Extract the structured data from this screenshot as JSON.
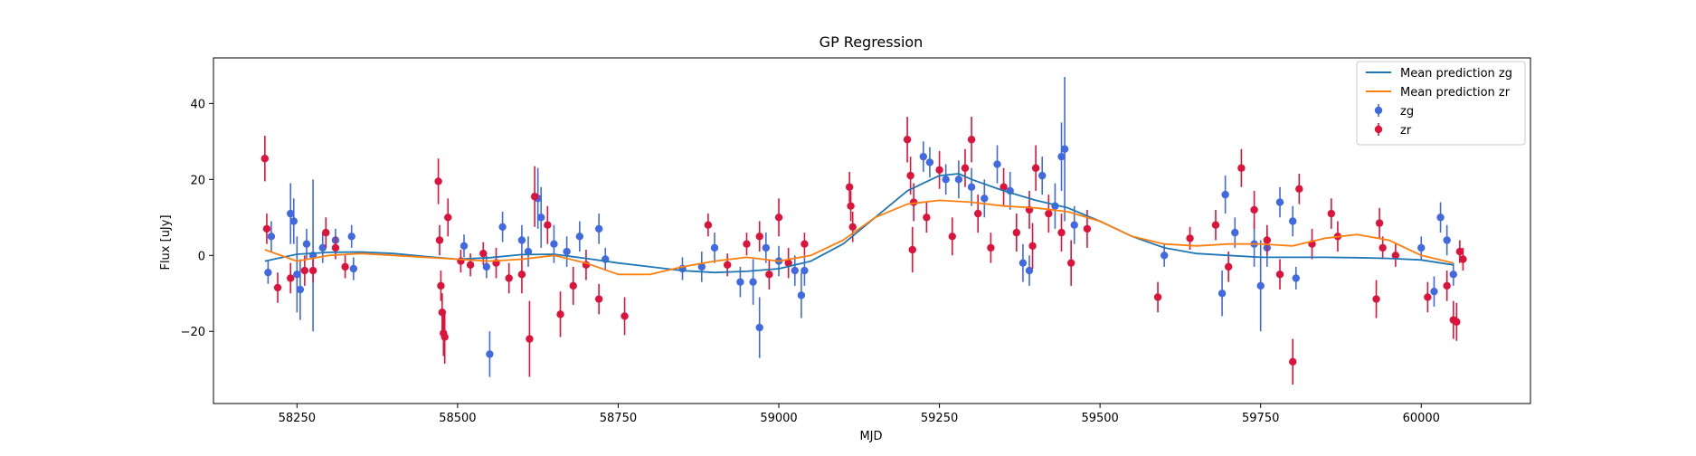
{
  "chart_data": {
    "type": "scatter",
    "title": "GP Regression",
    "xlabel": "MJD",
    "ylabel": "Flux [uJy]",
    "xlim": [
      58120,
      60170
    ],
    "ylim": [
      -39,
      52
    ],
    "xticks": [
      58250,
      58500,
      58750,
      59000,
      59250,
      59500,
      59750,
      60000
    ],
    "yticks": [
      -20,
      0,
      20,
      40
    ],
    "grid": false,
    "legend_position": "top-right",
    "legend": [
      {
        "label": "Mean prediction zg",
        "kind": "line",
        "color": "#1f77b4"
      },
      {
        "label": "Mean prediction zr",
        "kind": "line",
        "color": "#ff7f0e"
      },
      {
        "label": "zg",
        "kind": "errorbar",
        "color": "#4169e1"
      },
      {
        "label": "zr",
        "kind": "errorbar",
        "color": "#dc143c"
      }
    ],
    "series": [
      {
        "name": "Mean prediction zg",
        "kind": "line",
        "color": "#1f77b4",
        "x": [
          58200,
          58250,
          58300,
          58350,
          58400,
          58450,
          58500,
          58550,
          58600,
          58650,
          58700,
          58750,
          58800,
          58850,
          58900,
          58950,
          59000,
          59050,
          59100,
          59150,
          59200,
          59250,
          59280,
          59300,
          59350,
          59400,
          59450,
          59500,
          59550,
          59600,
          59650,
          59700,
          59750,
          59800,
          59850,
          59900,
          59950,
          60000,
          60050
        ],
        "y": [
          -1.5,
          0.3,
          0.8,
          0.9,
          0.5,
          -0.3,
          -1.0,
          -0.6,
          0.2,
          0.3,
          -0.8,
          -2.0,
          -3.0,
          -4.0,
          -4.5,
          -4.2,
          -3.5,
          -1.5,
          3.0,
          10.0,
          17.0,
          21.0,
          21.5,
          20.0,
          17.0,
          14.5,
          12.5,
          9.0,
          5.0,
          2.0,
          0.5,
          0.0,
          -0.5,
          -0.5,
          -0.5,
          -0.6,
          -0.8,
          -1.2,
          -2.5
        ]
      },
      {
        "name": "Mean prediction zr",
        "kind": "line",
        "color": "#ff7f0e",
        "x": [
          58200,
          58250,
          58300,
          58350,
          58400,
          58450,
          58500,
          58550,
          58600,
          58650,
          58700,
          58750,
          58800,
          58850,
          58900,
          58950,
          59000,
          59050,
          59100,
          59150,
          59200,
          59250,
          59300,
          59350,
          59400,
          59450,
          59500,
          59550,
          59600,
          59650,
          59700,
          59750,
          59800,
          59850,
          59900,
          59950,
          60000,
          60050
        ],
        "y": [
          1.5,
          -1.5,
          0.0,
          0.5,
          0.0,
          -0.5,
          -1.0,
          -1.5,
          -1.0,
          0.0,
          -2.0,
          -5.0,
          -5.0,
          -3.0,
          -1.5,
          -0.5,
          -1.5,
          0.0,
          4.0,
          10.0,
          13.5,
          14.5,
          14.0,
          13.0,
          12.5,
          11.5,
          9.0,
          5.0,
          3.0,
          2.5,
          3.0,
          3.0,
          2.5,
          4.5,
          5.5,
          4.0,
          0.0,
          -2.0
        ]
      },
      {
        "name": "zg",
        "kind": "errorbar",
        "color": "#4169e1",
        "points": [
          [
            58205,
            -4.5,
            3
          ],
          [
            58210,
            5,
            4
          ],
          [
            58240,
            11,
            8
          ],
          [
            58245,
            9,
            6
          ],
          [
            58250,
            -5,
            10
          ],
          [
            58255,
            -9,
            8
          ],
          [
            58265,
            3,
            4
          ],
          [
            58275,
            0,
            20
          ],
          [
            58290,
            2,
            4
          ],
          [
            58310,
            4,
            3
          ],
          [
            58335,
            5,
            3
          ],
          [
            58338,
            -3.5,
            3
          ],
          [
            58510,
            2.5,
            3
          ],
          [
            58545,
            -3,
            3
          ],
          [
            58550,
            -26,
            6
          ],
          [
            58570,
            7.5,
            4
          ],
          [
            58600,
            4,
            4
          ],
          [
            58610,
            1,
            4
          ],
          [
            58625,
            15,
            8
          ],
          [
            58630,
            10,
            8
          ],
          [
            58650,
            3,
            5
          ],
          [
            58670,
            1,
            4
          ],
          [
            58690,
            5,
            4
          ],
          [
            58720,
            7,
            4
          ],
          [
            58730,
            -1,
            3
          ],
          [
            58850,
            -3.5,
            3
          ],
          [
            58880,
            -3,
            4
          ],
          [
            58900,
            2,
            4
          ],
          [
            58940,
            -7,
            4
          ],
          [
            58960,
            -7,
            6
          ],
          [
            58970,
            -19,
            8
          ],
          [
            58980,
            2,
            4
          ],
          [
            59000,
            -1.5,
            4
          ],
          [
            59025,
            -4,
            4
          ],
          [
            59035,
            -10.5,
            6
          ],
          [
            59040,
            -4,
            4
          ],
          [
            59225,
            26,
            4
          ],
          [
            59235,
            24.5,
            4
          ],
          [
            59260,
            20,
            4
          ],
          [
            59280,
            20,
            5
          ],
          [
            59300,
            18,
            5
          ],
          [
            59320,
            15,
            5
          ],
          [
            59340,
            24,
            5
          ],
          [
            59360,
            17,
            5
          ],
          [
            59380,
            -2,
            5
          ],
          [
            59390,
            -4,
            4
          ],
          [
            59410,
            21,
            5
          ],
          [
            59430,
            13,
            6
          ],
          [
            59440,
            26,
            9
          ],
          [
            59445,
            28,
            19
          ],
          [
            59460,
            8,
            5
          ],
          [
            59600,
            0,
            3
          ],
          [
            59690,
            -10,
            6
          ],
          [
            59695,
            16,
            5
          ],
          [
            59710,
            6,
            4
          ],
          [
            59740,
            3,
            6
          ],
          [
            59750,
            -8,
            12
          ],
          [
            59760,
            2,
            5
          ],
          [
            59780,
            14,
            4
          ],
          [
            59800,
            9,
            4
          ],
          [
            59805,
            -6,
            3
          ],
          [
            60000,
            2,
            3
          ],
          [
            60020,
            -9.5,
            4
          ],
          [
            60030,
            10,
            4
          ],
          [
            60040,
            4,
            4
          ],
          [
            60050,
            -5,
            3
          ]
        ]
      },
      {
        "name": "zr",
        "kind": "errorbar",
        "color": "#dc143c",
        "points": [
          [
            58200,
            25.5,
            6
          ],
          [
            58203,
            7,
            4
          ],
          [
            58220,
            -8.5,
            4
          ],
          [
            58240,
            -6,
            4
          ],
          [
            58262,
            -4,
            4
          ],
          [
            58275,
            -4,
            3
          ],
          [
            58295,
            6,
            4
          ],
          [
            58310,
            2,
            3
          ],
          [
            58325,
            -3,
            3
          ],
          [
            58470,
            19.5,
            6
          ],
          [
            58472,
            4,
            4
          ],
          [
            58474,
            -8,
            4
          ],
          [
            58476,
            -15,
            5
          ],
          [
            58478,
            -20.5,
            6
          ],
          [
            58480,
            -21.5,
            7
          ],
          [
            58485,
            10,
            5
          ],
          [
            58505,
            -1.5,
            3
          ],
          [
            58520,
            -2.5,
            3
          ],
          [
            58540,
            0.5,
            3
          ],
          [
            58560,
            -2,
            4
          ],
          [
            58580,
            -6,
            4
          ],
          [
            58600,
            -5,
            5
          ],
          [
            58612,
            -22,
            10
          ],
          [
            58620,
            15.5,
            8
          ],
          [
            58640,
            8,
            5
          ],
          [
            58660,
            -15.5,
            6
          ],
          [
            58680,
            -8,
            5
          ],
          [
            58700,
            -2.5,
            4
          ],
          [
            58720,
            -11.5,
            4
          ],
          [
            58760,
            -16,
            5
          ],
          [
            58890,
            8,
            3
          ],
          [
            58920,
            -2.5,
            3
          ],
          [
            58950,
            3,
            3
          ],
          [
            58970,
            5,
            4
          ],
          [
            58985,
            -5,
            4
          ],
          [
            59000,
            10,
            5
          ],
          [
            59015,
            -2,
            4
          ],
          [
            59040,
            3,
            3
          ],
          [
            59110,
            18,
            4
          ],
          [
            59112,
            13,
            4
          ],
          [
            59115,
            7.5,
            4
          ],
          [
            59200,
            30.5,
            6
          ],
          [
            59205,
            21,
            5
          ],
          [
            59208,
            1.5,
            6
          ],
          [
            59210,
            14,
            5
          ],
          [
            59230,
            10,
            4
          ],
          [
            59250,
            22.5,
            5
          ],
          [
            59270,
            5,
            5
          ],
          [
            59290,
            23,
            5
          ],
          [
            59300,
            30.5,
            6
          ],
          [
            59310,
            11,
            5
          ],
          [
            59330,
            2,
            4
          ],
          [
            59350,
            18,
            5
          ],
          [
            59370,
            6,
            5
          ],
          [
            59390,
            12,
            5
          ],
          [
            59395,
            2.5,
            6
          ],
          [
            59400,
            23,
            6
          ],
          [
            59420,
            11,
            5
          ],
          [
            59440,
            6,
            5
          ],
          [
            59455,
            -2,
            6
          ],
          [
            59480,
            7,
            5
          ],
          [
            59590,
            -11,
            4
          ],
          [
            59640,
            4.5,
            3
          ],
          [
            59680,
            8,
            4
          ],
          [
            59700,
            -3,
            4
          ],
          [
            59720,
            23,
            5
          ],
          [
            59740,
            12,
            5
          ],
          [
            59760,
            4,
            4
          ],
          [
            59780,
            -5,
            4
          ],
          [
            59800,
            -28,
            6
          ],
          [
            59810,
            17.5,
            4
          ],
          [
            59830,
            3,
            4
          ],
          [
            59860,
            11,
            4
          ],
          [
            59870,
            5,
            4
          ],
          [
            59930,
            -11.5,
            5
          ],
          [
            59935,
            8.5,
            4
          ],
          [
            59940,
            2,
            3
          ],
          [
            59960,
            0,
            3
          ],
          [
            60010,
            -11,
            4
          ],
          [
            60040,
            -8,
            4
          ],
          [
            60050,
            -17,
            5
          ],
          [
            60055,
            -17.5,
            5
          ],
          [
            60060,
            1,
            3
          ],
          [
            60065,
            -1,
            3
          ]
        ]
      }
    ]
  }
}
